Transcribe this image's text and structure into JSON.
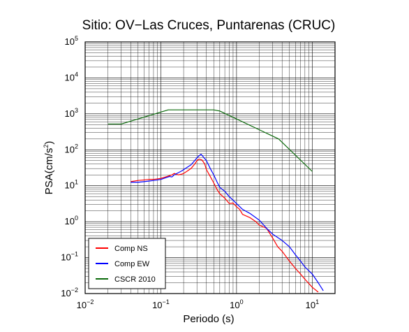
{
  "chart_data": {
    "type": "line",
    "title": "Sitio: OV−Las Cruces, Puntarenas (CRUC)",
    "xlabel": "Periodo (s)",
    "ylabel": "PSA(cm/s²)",
    "ylabel_main": "PSA(cm/s",
    "ylabel_sup": "2",
    "ylabel_close": ")",
    "x_scale": "log",
    "y_scale": "log",
    "xlim": [
      0.01,
      20
    ],
    "ylim": [
      0.01,
      100000
    ],
    "grid": true,
    "legend_position": "bottom-left",
    "x_ticks": [
      {
        "value": 0.01,
        "base": "10",
        "exp": "−2"
      },
      {
        "value": 0.1,
        "base": "10",
        "exp": "−1"
      },
      {
        "value": 1,
        "base": "10",
        "exp": "0"
      },
      {
        "value": 10,
        "base": "10",
        "exp": "1"
      }
    ],
    "y_ticks": [
      {
        "value": 0.01,
        "base": "10",
        "exp": "−2"
      },
      {
        "value": 0.1,
        "base": "10",
        "exp": "−1"
      },
      {
        "value": 1,
        "base": "10",
        "exp": "0"
      },
      {
        "value": 10,
        "base": "10",
        "exp": "1"
      },
      {
        "value": 100,
        "base": "10",
        "exp": "2"
      },
      {
        "value": 1000,
        "base": "10",
        "exp": "3"
      },
      {
        "value": 10000,
        "base": "10",
        "exp": "4"
      },
      {
        "value": 100000,
        "base": "10",
        "exp": "5"
      }
    ],
    "series": [
      {
        "name": "Comp NS",
        "color": "#ff0000",
        "x": [
          0.04,
          0.05,
          0.06,
          0.07,
          0.08,
          0.09,
          0.1,
          0.11,
          0.12,
          0.13,
          0.14,
          0.15,
          0.17,
          0.19,
          0.2,
          0.22,
          0.25,
          0.28,
          0.3,
          0.32,
          0.35,
          0.38,
          0.4,
          0.45,
          0.5,
          0.55,
          0.6,
          0.7,
          0.8,
          0.9,
          1.0,
          1.1,
          1.2,
          1.5,
          1.8,
          2.0,
          2.5,
          3.0,
          3.5,
          4.0,
          5.0,
          6.0,
          7.0,
          8.0,
          10.0,
          12.0
        ],
        "y": [
          13,
          14,
          14.5,
          15,
          15,
          15.5,
          16,
          17,
          18,
          19,
          20,
          22,
          20,
          21,
          22,
          25,
          30,
          40,
          50,
          55,
          52,
          40,
          28,
          18,
          12,
          8,
          6,
          4.5,
          3.2,
          3.3,
          2.6,
          2.2,
          1.6,
          1.3,
          1.0,
          0.8,
          0.65,
          0.35,
          0.2,
          0.15,
          0.08,
          0.05,
          0.035,
          0.025,
          0.015,
          0.011
        ]
      },
      {
        "name": "Comp EW",
        "color": "#0000ff",
        "x": [
          0.04,
          0.05,
          0.06,
          0.07,
          0.08,
          0.09,
          0.1,
          0.11,
          0.12,
          0.13,
          0.14,
          0.15,
          0.17,
          0.19,
          0.2,
          0.22,
          0.25,
          0.28,
          0.3,
          0.32,
          0.34,
          0.36,
          0.4,
          0.45,
          0.5,
          0.55,
          0.6,
          0.7,
          0.8,
          1.0,
          1.2,
          1.5,
          2.0,
          2.5,
          3.0,
          4.0,
          5.0,
          6.0,
          7.0,
          8.0,
          10.0,
          12.0,
          14.0
        ],
        "y": [
          12.5,
          12.5,
          13,
          13.5,
          14,
          14.5,
          15,
          16,
          17,
          18,
          17.5,
          20,
          23,
          26,
          28,
          32,
          38,
          50,
          60,
          68,
          75,
          65,
          50,
          30,
          20,
          13,
          9,
          7,
          5,
          3.2,
          2.2,
          1.7,
          1.1,
          0.65,
          0.45,
          0.3,
          0.2,
          0.12,
          0.08,
          0.055,
          0.035,
          0.02,
          0.012
        ]
      },
      {
        "name": "CSCR 2010",
        "color": "#0a6a0a",
        "x": [
          0.02,
          0.03,
          0.125,
          0.5,
          0.6,
          3.6,
          10.0
        ],
        "y": [
          520,
          520,
          1290,
          1290,
          1200,
          200,
          25
        ]
      }
    ]
  }
}
